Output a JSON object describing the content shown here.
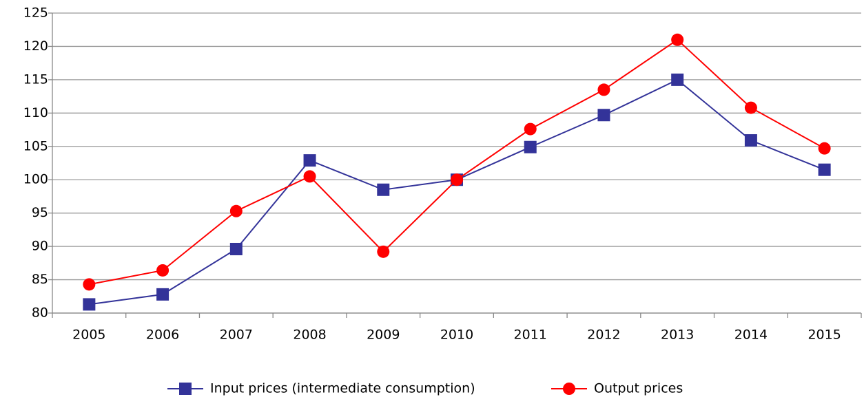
{
  "chart_data": {
    "type": "line",
    "categories": [
      "2005",
      "2006",
      "2007",
      "2008",
      "2009",
      "2010",
      "2011",
      "2012",
      "2013",
      "2014",
      "2015"
    ],
    "series": [
      {
        "name": "Input prices (intermediate consumption)",
        "color": "#333399",
        "marker": "square",
        "values": [
          81.3,
          82.8,
          89.6,
          102.9,
          98.5,
          100,
          104.9,
          109.7,
          115,
          105.9,
          101.5
        ]
      },
      {
        "name": "Output prices",
        "color": "#ff0000",
        "marker": "circle",
        "values": [
          84.3,
          86.4,
          95.3,
          100.5,
          89.2,
          100,
          107.6,
          113.5,
          121,
          110.8,
          104.7
        ]
      }
    ],
    "ylim": [
      80,
      125
    ],
    "yticks": [
      80,
      85,
      90,
      95,
      100,
      105,
      110,
      115,
      120,
      125
    ],
    "grid": true,
    "legend": "bottom"
  }
}
